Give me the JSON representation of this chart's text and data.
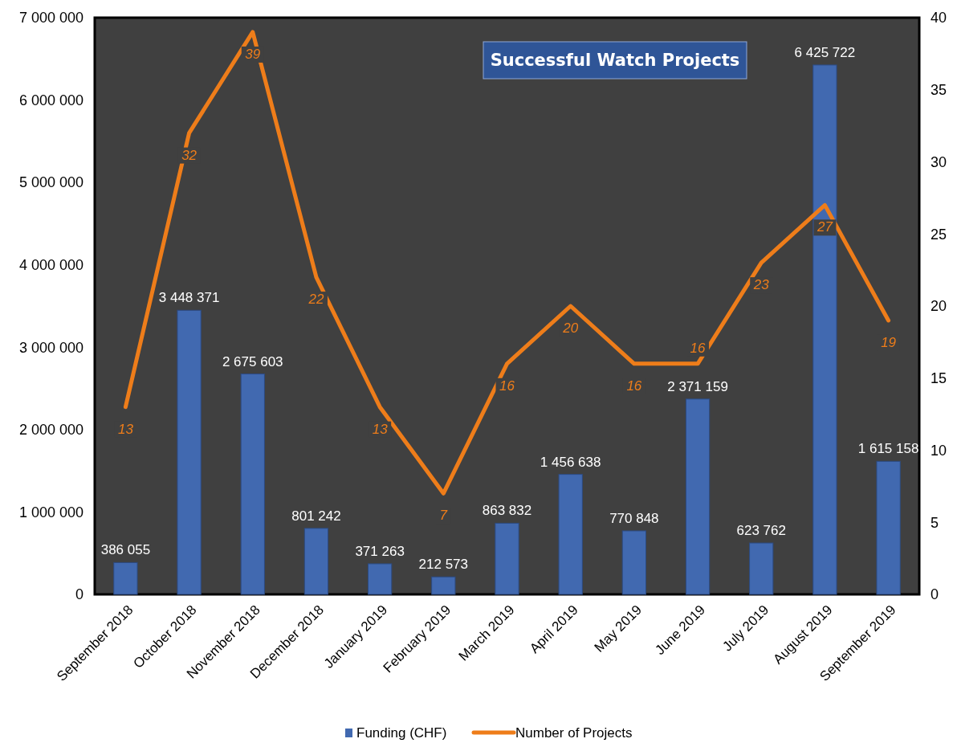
{
  "chart_data": {
    "type": "bar",
    "title": "Successful  Watch Projects",
    "categories": [
      "September 2018",
      "October 2018",
      "November 2018",
      "December 2018",
      "January 2019",
      "February 2019",
      "March 2019",
      "April 2019",
      "May 2019",
      "June 2019",
      "July 2019",
      "August 2019",
      "September 2019"
    ],
    "series": [
      {
        "name": "Funding (CHF)",
        "color": "#4169b0",
        "values": [
          386055,
          3448371,
          2675603,
          801242,
          371263,
          212573,
          863832,
          1456638,
          770848,
          2371159,
          623762,
          6425722,
          1615158
        ],
        "value_labels": [
          "386 055",
          "3 448 371",
          "2 675 603",
          "801 242",
          "371 263",
          "212 573",
          "863 832",
          "1 456 638",
          "770 848",
          "2 371 159",
          "623 762",
          "6 425 722",
          "1 615 158"
        ]
      },
      {
        "name": "Number of Projects",
        "type": "line",
        "axis": "y2",
        "color": "#ee7d1a",
        "values": [
          13,
          32,
          39,
          22,
          13,
          7,
          16,
          20,
          16,
          16,
          23,
          27,
          19
        ],
        "value_labels": [
          "13",
          "32",
          "39",
          "22",
          "13",
          "7",
          "16",
          "20",
          "16",
          "16",
          "23",
          "27",
          "19"
        ]
      }
    ],
    "ylim": [
      0,
      7000000
    ],
    "yticks": [
      {
        "value": 0,
        "label": "0"
      },
      {
        "value": 1000000,
        "label": "1 000 000"
      },
      {
        "value": 2000000,
        "label": "2 000 000"
      },
      {
        "value": 3000000,
        "label": "3 000 000"
      },
      {
        "value": 4000000,
        "label": "4 000 000"
      },
      {
        "value": 5000000,
        "label": "5 000 000"
      },
      {
        "value": 6000000,
        "label": "6 000 000"
      },
      {
        "value": 7000000,
        "label": "7 000 000"
      }
    ],
    "y2lim": [
      0,
      40
    ],
    "y2ticks": [
      0,
      5,
      10,
      15,
      20,
      25,
      30,
      35,
      40
    ],
    "legend": "bottom",
    "grid": false
  }
}
